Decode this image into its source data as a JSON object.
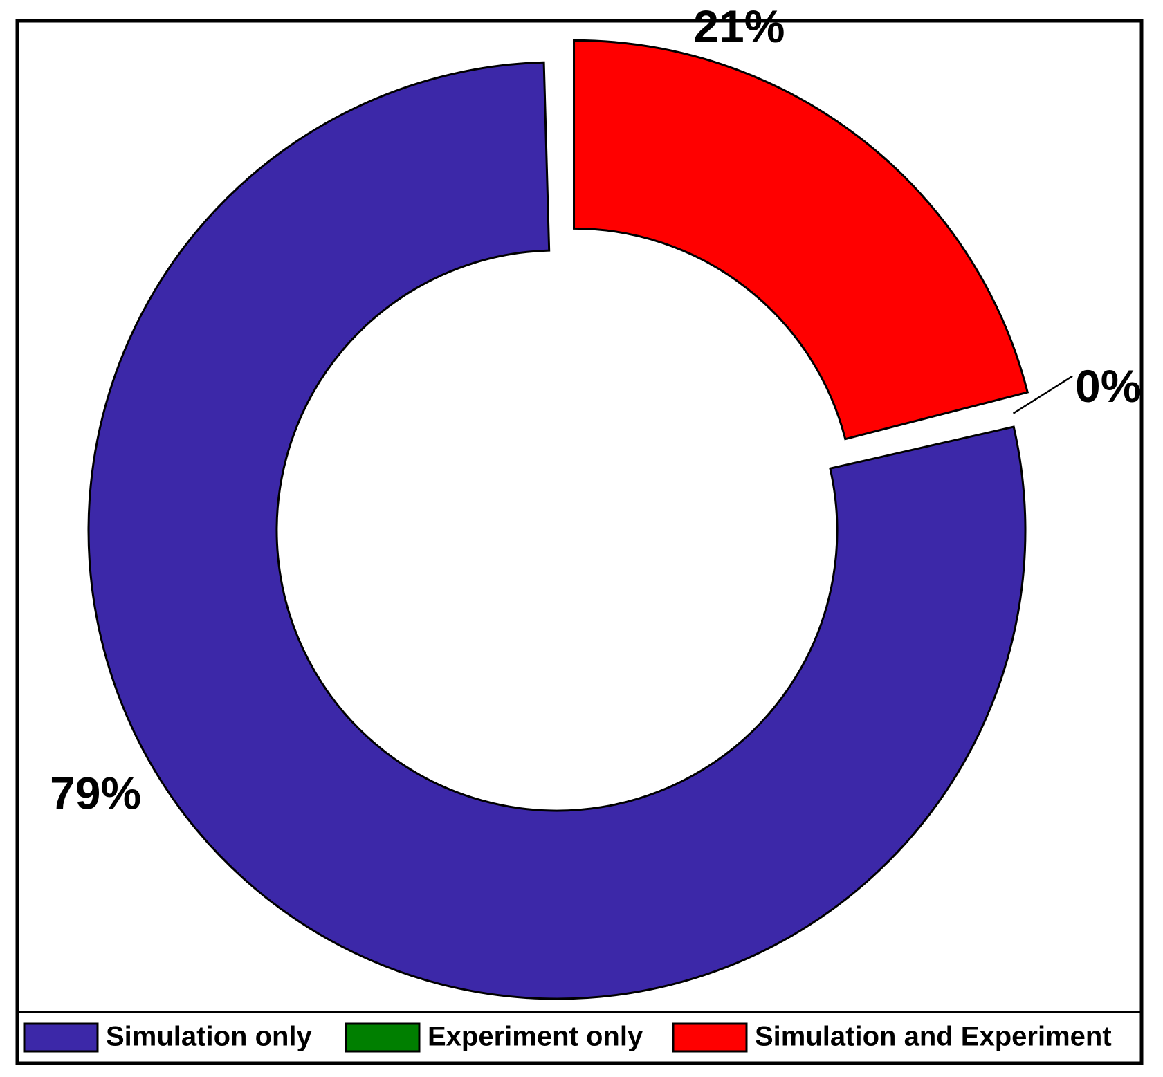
{
  "chart_data": {
    "type": "pie",
    "donut": true,
    "start_angle_deg": 0,
    "direction": "clockwise",
    "legend_position": "bottom",
    "exploded_slice": "Simulation and Experiment",
    "slices": [
      {
        "name": "Simulation and Experiment",
        "value": 21,
        "label": "21%",
        "color": "#ff0000"
      },
      {
        "name": "Experiment only",
        "value": 0,
        "label": "0%",
        "color": "#007f00"
      },
      {
        "name": "Simulation only",
        "value": 79,
        "label": "79%",
        "color": "#3c28a8"
      }
    ],
    "legend": [
      {
        "name": "Simulation only",
        "color": "#3c28a8"
      },
      {
        "name": "Experiment only",
        "color": "#007f00"
      },
      {
        "name": "Simulation and Experiment",
        "color": "#ff0000"
      }
    ]
  }
}
